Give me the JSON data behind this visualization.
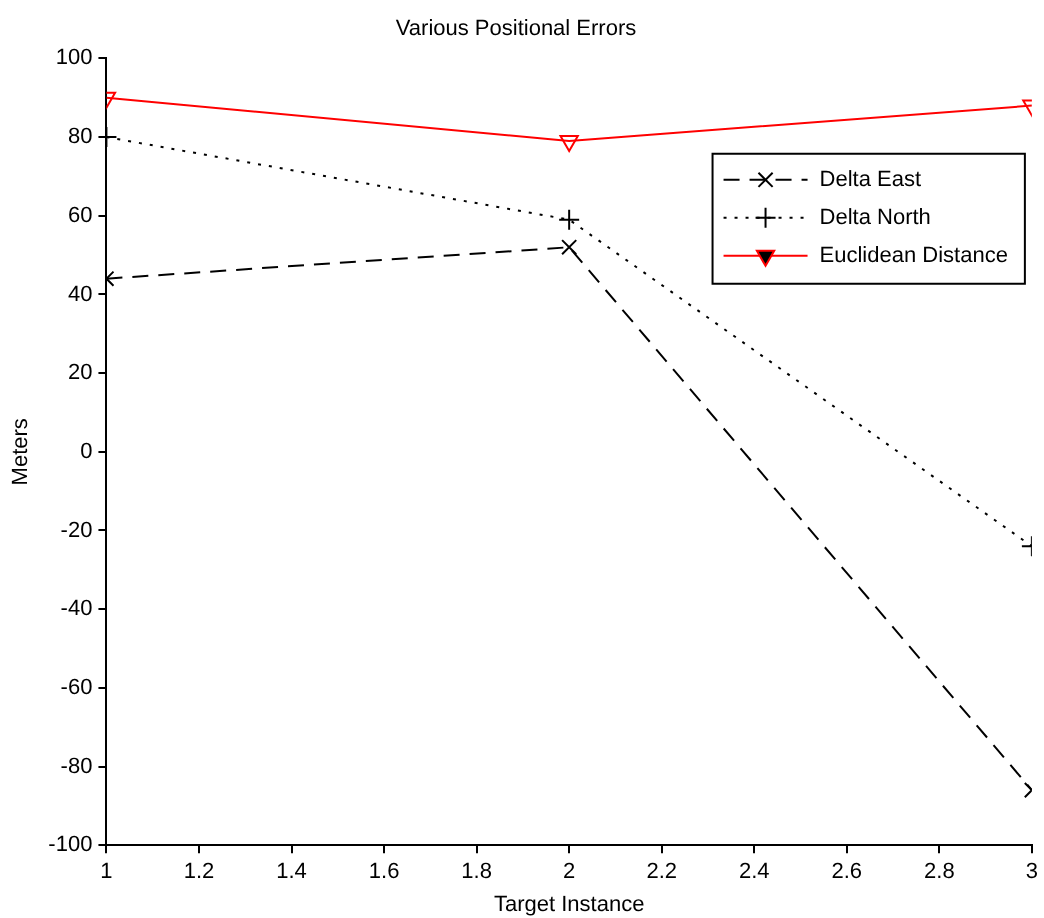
{
  "chart_data": {
    "type": "line",
    "title": "Various Positional Errors",
    "xlabel": "Target Instance",
    "ylabel": "Meters",
    "x": [
      1,
      2,
      3
    ],
    "series": [
      {
        "name": "Delta East",
        "color": "#000000",
        "values": [
          44,
          52,
          -86
        ],
        "marker": "cross",
        "line_style": "dashed"
      },
      {
        "name": "Delta North",
        "color": "#000000",
        "values": [
          80,
          59,
          -24
        ],
        "marker": "plus",
        "line_style": "dotted"
      },
      {
        "name": "Euclidean Distance",
        "color": "#ff0000",
        "values": [
          90,
          79,
          88
        ],
        "marker": "triangle-down",
        "line_style": "solid"
      }
    ],
    "xlim": [
      1,
      3
    ],
    "xticks": [
      1,
      1.2,
      1.4,
      1.6,
      1.8,
      2,
      2.2,
      2.4,
      2.6,
      2.8,
      3
    ],
    "ylim": [
      -100,
      100
    ],
    "yticks": [
      -100,
      -80,
      -60,
      -40,
      -20,
      0,
      20,
      40,
      60,
      80,
      100
    ],
    "grid": false,
    "legend": "top right"
  }
}
